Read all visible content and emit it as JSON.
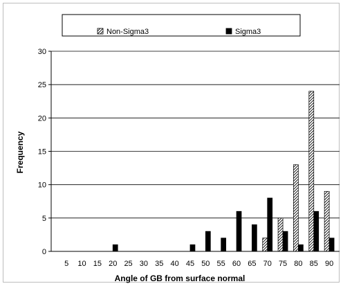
{
  "chart_data": {
    "type": "bar",
    "title": "",
    "xlabel": "Angle of GB from surface normal",
    "ylabel": "Frequency",
    "ylim": [
      0,
      30
    ],
    "yticks": [
      0,
      5,
      10,
      15,
      20,
      25,
      30
    ],
    "grid": true,
    "legend_position": "top",
    "categories": [
      "5",
      "10",
      "15",
      "20",
      "25",
      "30",
      "35",
      "40",
      "45",
      "50",
      "55",
      "60",
      "65",
      "70",
      "75",
      "80",
      "85",
      "90"
    ],
    "series": [
      {
        "name": "Non-Sigma3",
        "pattern": "diagonal-hatch",
        "color": "#000000",
        "values": [
          0,
          0,
          0,
          0,
          0,
          0,
          0,
          0,
          0,
          0,
          0,
          0,
          0,
          2,
          5,
          13,
          24,
          9
        ]
      },
      {
        "name": "Sigma3",
        "pattern": "solid",
        "color": "#000000",
        "values": [
          0,
          0,
          0,
          1,
          0,
          0,
          0,
          0,
          1,
          3,
          2,
          6,
          4,
          8,
          3,
          1,
          6,
          2
        ]
      }
    ]
  }
}
